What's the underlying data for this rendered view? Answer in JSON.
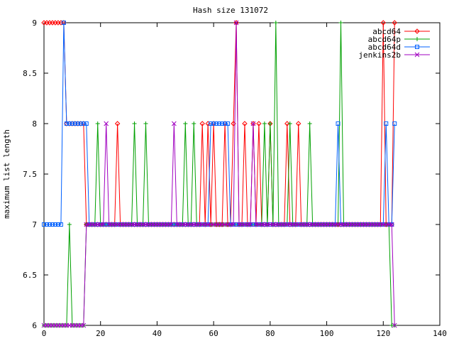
{
  "chart_data": {
    "type": "line",
    "title": "Hash size 131072",
    "xlabel": "",
    "ylabel": "maximum list length",
    "xlim": [
      0,
      140
    ],
    "ylim": [
      6,
      9
    ],
    "x_ticks": [
      0,
      20,
      40,
      60,
      80,
      100,
      120,
      140
    ],
    "x_tick_labels": [
      "0",
      "20",
      "40",
      "60",
      "80",
      "100",
      "120",
      "140"
    ],
    "y_ticks": [
      6,
      6.5,
      7,
      7.5,
      8,
      8.5,
      9
    ],
    "y_tick_labels": [
      "6",
      "6.5",
      "7",
      "7.5",
      "8",
      "8.5",
      "9"
    ],
    "grid": false,
    "legend_position": "top-right",
    "x": [
      0,
      1,
      2,
      3,
      4,
      5,
      6,
      7,
      8,
      9,
      10,
      11,
      12,
      13,
      14,
      15,
      16,
      17,
      18,
      19,
      20,
      21,
      22,
      23,
      24,
      25,
      26,
      27,
      28,
      29,
      30,
      31,
      32,
      33,
      34,
      35,
      36,
      37,
      38,
      39,
      40,
      41,
      42,
      43,
      44,
      45,
      46,
      47,
      48,
      49,
      50,
      51,
      52,
      53,
      54,
      55,
      56,
      57,
      58,
      59,
      60,
      61,
      62,
      63,
      64,
      65,
      66,
      67,
      68,
      69,
      70,
      71,
      72,
      73,
      74,
      75,
      76,
      77,
      78,
      79,
      80,
      81,
      82,
      83,
      84,
      85,
      86,
      87,
      88,
      89,
      90,
      91,
      92,
      93,
      94,
      95,
      96,
      97,
      98,
      99,
      100,
      101,
      102,
      103,
      104,
      105,
      106,
      107,
      108,
      109,
      110,
      111,
      112,
      113,
      114,
      115,
      116,
      117,
      118,
      119,
      120,
      121,
      122,
      123,
      124
    ],
    "series": [
      {
        "name": "abcd64",
        "color": "#ff0000",
        "marker": "diamond",
        "values": [
          9,
          9,
          9,
          9,
          9,
          9,
          9,
          9,
          8,
          8,
          8,
          8,
          8,
          8,
          8,
          7,
          7,
          7,
          7,
          7,
          7,
          7,
          7,
          7,
          7,
          7,
          8,
          7,
          7,
          7,
          7,
          7,
          7,
          7,
          7,
          7,
          7,
          7,
          7,
          7,
          7,
          7,
          7,
          7,
          7,
          7,
          7,
          7,
          7,
          7,
          7,
          7,
          7,
          7,
          7,
          7,
          8,
          7,
          8,
          7,
          8,
          7,
          7,
          7,
          8,
          7,
          7,
          8,
          9,
          7,
          7,
          8,
          7,
          7,
          8,
          7,
          8,
          7,
          7,
          7,
          8,
          7,
          7,
          7,
          7,
          7,
          8,
          7,
          7,
          7,
          8,
          7,
          7,
          7,
          7,
          7,
          7,
          7,
          7,
          7,
          7,
          7,
          7,
          7,
          7,
          7,
          7,
          7,
          7,
          7,
          7,
          7,
          7,
          7,
          7,
          7,
          7,
          7,
          7,
          7,
          9,
          7,
          7,
          7,
          9
        ]
      },
      {
        "name": "abcd64p",
        "color": "#00a000",
        "marker": "plus",
        "values": [
          6,
          6,
          6,
          6,
          6,
          6,
          6,
          6,
          6,
          7,
          6,
          6,
          6,
          6,
          6,
          7,
          7,
          7,
          7,
          8,
          7,
          7,
          7,
          7,
          7,
          7,
          7,
          7,
          7,
          7,
          7,
          7,
          8,
          7,
          7,
          7,
          8,
          7,
          7,
          7,
          7,
          7,
          7,
          7,
          7,
          7,
          7,
          7,
          7,
          7,
          8,
          7,
          7,
          8,
          7,
          7,
          7,
          7,
          7,
          7,
          7,
          7,
          7,
          7,
          7,
          7,
          7,
          7,
          7,
          7,
          7,
          7,
          7,
          7,
          7,
          7,
          7,
          7,
          8,
          7,
          8,
          7,
          9,
          7,
          7,
          7,
          7,
          8,
          7,
          7,
          7,
          7,
          7,
          7,
          8,
          7,
          7,
          7,
          7,
          7,
          7,
          7,
          7,
          7,
          7,
          9,
          7,
          7,
          7,
          7,
          7,
          7,
          7,
          7,
          7,
          7,
          7,
          7,
          7,
          7,
          7,
          7,
          7,
          6,
          6
        ]
      },
      {
        "name": "abcd64d",
        "color": "#0060ff",
        "marker": "square",
        "values": [
          7,
          7,
          7,
          7,
          7,
          7,
          7,
          9,
          8,
          8,
          8,
          8,
          8,
          8,
          8,
          8,
          7,
          7,
          7,
          7,
          7,
          7,
          7,
          7,
          7,
          7,
          7,
          7,
          7,
          7,
          7,
          7,
          7,
          7,
          7,
          7,
          7,
          7,
          7,
          7,
          7,
          7,
          7,
          7,
          7,
          7,
          7,
          7,
          7,
          7,
          7,
          7,
          7,
          7,
          7,
          7,
          7,
          7,
          7,
          8,
          8,
          8,
          8,
          8,
          8,
          8,
          7,
          7,
          7,
          7,
          7,
          7,
          7,
          7,
          7,
          7,
          7,
          7,
          7,
          7,
          7,
          7,
          7,
          7,
          7,
          7,
          7,
          7,
          7,
          7,
          7,
          7,
          7,
          7,
          7,
          7,
          7,
          7,
          7,
          7,
          7,
          7,
          7,
          7,
          8,
          7,
          7,
          7,
          7,
          7,
          7,
          7,
          7,
          7,
          7,
          7,
          7,
          7,
          7,
          7,
          7,
          8,
          7,
          7,
          8
        ]
      },
      {
        "name": "jenkins2b",
        "color": "#a000c0",
        "marker": "x",
        "values": [
          6,
          6,
          6,
          6,
          6,
          6,
          6,
          6,
          6,
          6,
          6,
          6,
          6,
          6,
          6,
          7,
          7,
          7,
          7,
          7,
          7,
          7,
          8,
          7,
          7,
          7,
          7,
          7,
          7,
          7,
          7,
          7,
          7,
          7,
          7,
          7,
          7,
          7,
          7,
          7,
          7,
          7,
          7,
          7,
          7,
          7,
          8,
          7,
          7,
          7,
          7,
          7,
          7,
          7,
          7,
          7,
          7,
          7,
          7,
          7,
          7,
          7,
          7,
          7,
          7,
          7,
          7,
          7,
          9,
          7,
          7,
          7,
          7,
          7,
          8,
          7,
          7,
          7,
          7,
          7,
          7,
          7,
          7,
          7,
          7,
          7,
          7,
          7,
          7,
          7,
          7,
          7,
          7,
          7,
          7,
          7,
          7,
          7,
          7,
          7,
          7,
          7,
          7,
          7,
          7,
          7,
          7,
          7,
          7,
          7,
          7,
          7,
          7,
          7,
          7,
          7,
          7,
          7,
          7,
          7,
          7,
          7,
          7,
          7,
          6
        ]
      }
    ]
  }
}
